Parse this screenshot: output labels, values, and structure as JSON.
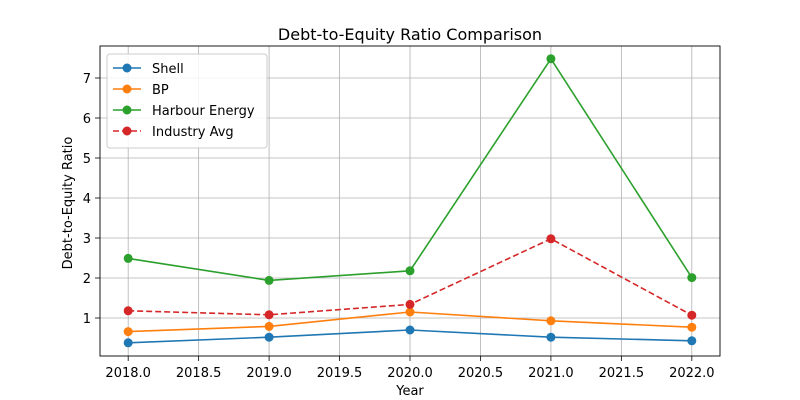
{
  "chart_data": {
    "type": "line",
    "title": "Debt-to-Equity Ratio Comparison",
    "xlabel": "Year",
    "ylabel": "Debt-to-Equity Ratio",
    "x": [
      2018.0,
      2019.0,
      2020.0,
      2021.0,
      2022.0
    ],
    "xlim": [
      2017.8,
      2022.2
    ],
    "ylim": [
      0.05,
      7.8
    ],
    "xticks": [
      "2018.0",
      "2018.5",
      "2019.0",
      "2019.5",
      "2020.0",
      "2020.5",
      "2021.0",
      "2021.5",
      "2022.0"
    ],
    "yticks": [
      "1",
      "2",
      "3",
      "4",
      "5",
      "6",
      "7"
    ],
    "grid": true,
    "legend_position": "top-left",
    "series": [
      {
        "name": "Shell",
        "color": "#1f77b4",
        "style": "solid",
        "marker": "circle",
        "values": [
          0.38,
          0.52,
          0.7,
          0.52,
          0.43
        ]
      },
      {
        "name": "BP",
        "color": "#ff7f0e",
        "style": "solid",
        "marker": "circle",
        "values": [
          0.66,
          0.79,
          1.15,
          0.93,
          0.77
        ]
      },
      {
        "name": "Harbour Energy",
        "color": "#2ca02c",
        "style": "solid",
        "marker": "circle",
        "values": [
          2.49,
          1.94,
          2.18,
          7.48,
          2.01
        ]
      },
      {
        "name": "Industry Avg",
        "color": "#d62728",
        "style": "dashed",
        "marker": "circle",
        "values": [
          1.18,
          1.08,
          1.34,
          2.98,
          1.07
        ]
      }
    ]
  }
}
